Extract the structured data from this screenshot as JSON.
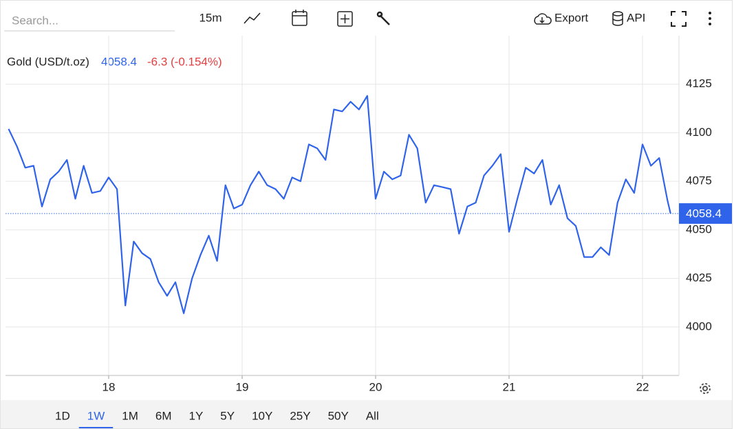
{
  "toolbar": {
    "search_placeholder": "Search...",
    "interval": "15m",
    "export": "Export",
    "api": "API"
  },
  "ranges": [
    "1D",
    "1W",
    "1M",
    "6M",
    "1Y",
    "5Y",
    "10Y",
    "25Y",
    "50Y",
    "All"
  ],
  "active_range": "1W",
  "chart_data": {
    "type": "line",
    "change": "-6.3 (-0.154%)",
    "last_value": 4058.4,
    "x": [
      17.25,
      17.3125,
      17.375,
      17.4375,
      17.5,
      17.5625,
      17.625,
      17.6875,
      17.75,
      17.8125,
      17.875,
      17.9375,
      18,
      18.0625,
      18.125,
      18.1875,
      18.25,
      18.3125,
      18.375,
      18.4375,
      18.5,
      18.5625,
      18.625,
      18.6875,
      18.75,
      18.8125,
      18.875,
      18.9375,
      19,
      19.0625,
      19.125,
      19.1875,
      19.25,
      19.3125,
      19.375,
      19.4375,
      19.5,
      19.5625,
      19.625,
      19.6875,
      19.75,
      19.8125,
      19.875,
      19.9375,
      20,
      20.0625,
      20.125,
      20.1875,
      20.25,
      20.3125,
      20.375,
      20.4375,
      20.5,
      20.5625,
      20.625,
      20.6875,
      20.75,
      20.8125,
      20.875,
      20.9375,
      21,
      21.0625,
      21.125,
      21.1875,
      21.25,
      21.3125,
      21.375,
      21.4375,
      21.5,
      21.5625,
      21.625,
      21.6875,
      21.75,
      21.8125,
      21.875,
      21.9375,
      22,
      22.0625,
      22.125,
      22.1875,
      22.21
    ],
    "series": [
      {
        "name": "Gold (USD/t.oz)",
        "color": "#2f63ea",
        "values": [
          4102,
          4093,
          4082,
          4083,
          4062,
          4076,
          4080,
          4086,
          4066,
          4083,
          4069,
          4070,
          4077,
          4071,
          4011,
          4044,
          4038,
          4035,
          4023,
          4016,
          4023,
          4007,
          4025,
          4037,
          4047,
          4034,
          4073,
          4061,
          4063,
          4073,
          4080,
          4073,
          4071,
          4066,
          4077,
          4075,
          4094,
          4092,
          4086,
          4112,
          4111,
          4116,
          4112,
          4119,
          4066,
          4080,
          4076,
          4078,
          4099,
          4092,
          4064,
          4073,
          4072,
          4071,
          4048,
          4062,
          4064,
          4078,
          4083,
          4089,
          4049,
          4066,
          4082,
          4079,
          4086,
          4063,
          4073,
          4056,
          4052,
          4036,
          4036,
          4041,
          4037,
          4064,
          4076,
          4069,
          4094,
          4083,
          4087,
          4065,
          4058.4
        ]
      }
    ],
    "xlim": [
      17.227,
      22.273
    ],
    "xticks": [
      18,
      19,
      20,
      21,
      22
    ],
    "ylim": [
      3975,
      4150
    ],
    "yticks": [
      4000,
      4025,
      4050,
      4075,
      4100,
      4125
    ],
    "grid": true
  }
}
